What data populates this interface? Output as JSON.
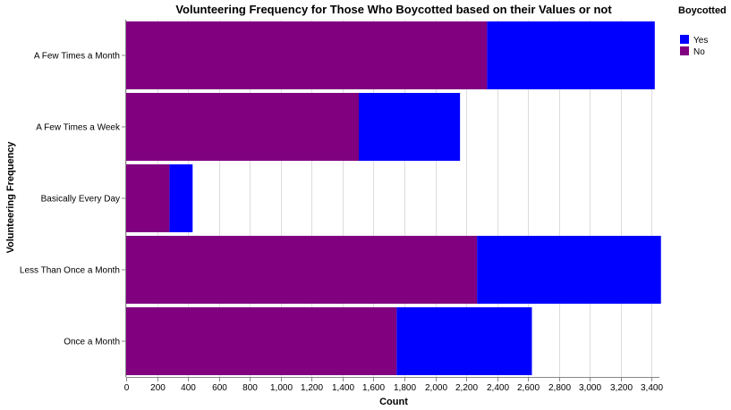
{
  "chart_data": {
    "type": "bar",
    "orientation": "horizontal",
    "stacked": true,
    "title": "Volunteering Frequency for Those Who Boycotted based on their Values or not",
    "xlabel": "Count",
    "ylabel": "Volunteering Frequency",
    "xlim": [
      0,
      3450
    ],
    "x_ticks": [
      0,
      200,
      400,
      600,
      800,
      1000,
      1200,
      1400,
      1600,
      1800,
      2000,
      2200,
      2400,
      2600,
      2800,
      3000,
      3200,
      3400
    ],
    "x_tick_labels": [
      "0",
      "200",
      "400",
      "600",
      "800",
      "1,000",
      "1,200",
      "1,400",
      "1,600",
      "1,800",
      "2,000",
      "2,200",
      "2,400",
      "2,600",
      "2,800",
      "3,000",
      "3,200",
      "3,400"
    ],
    "grid": true,
    "categories": [
      "A Few Times a Month",
      "A Few Times a Week",
      "Basically Every Day",
      "Less Than Once a Month",
      "Once a Month"
    ],
    "series": [
      {
        "name": "No",
        "color": "#800080",
        "values": [
          2335,
          1505,
          280,
          2270,
          1750
        ]
      },
      {
        "name": "Yes",
        "color": "#0000ff",
        "values": [
          1085,
          655,
          150,
          1190,
          875
        ]
      }
    ],
    "legend": {
      "title": "Boycotted",
      "position": "top-right",
      "entries": [
        {
          "label": "Yes",
          "color": "#0000ff"
        },
        {
          "label": "No",
          "color": "#800080"
        }
      ]
    }
  }
}
